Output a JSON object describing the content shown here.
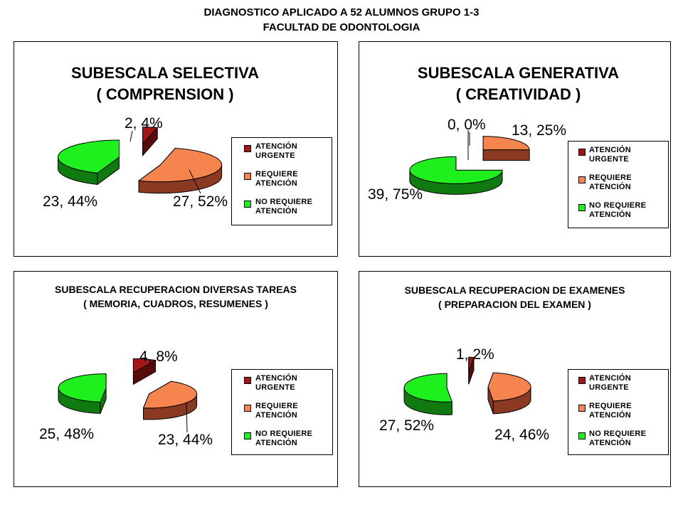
{
  "page": {
    "title_line1": "DIAGNOSTICO APLICADO A 52 ALUMNOS GRUPO 1-3",
    "title_line2": "FACULTAD DE ODONTOLOGIA"
  },
  "legend_items": [
    {
      "label": "ATENCIÓN\nURGENTE",
      "color": "#a31616"
    },
    {
      "label": "REQUIERE\nATENCIÓN",
      "color": "#f6844f"
    },
    {
      "label": "NO REQUIERE\nATENCIÓN",
      "color": "#1ef01e"
    }
  ],
  "chart_data": [
    {
      "type": "pie",
      "title_line1": "SUBESCALA SELECTIVA",
      "title_line2": "( COMPRENSION )",
      "categories": [
        "ATENCIÓN URGENTE",
        "REQUIERE ATENCIÓN",
        "NO REQUIERE ATENCIÓN"
      ],
      "values": [
        2,
        27,
        23
      ],
      "data_labels": [
        "2, 4%",
        "27, 52%",
        "23, 44%"
      ],
      "exploded": true,
      "legend_position": "right"
    },
    {
      "type": "pie",
      "title_line1": "SUBESCALA GENERATIVA",
      "title_line2": "( CREATIVIDAD )",
      "categories": [
        "ATENCIÓN URGENTE",
        "REQUIERE ATENCIÓN",
        "NO REQUIERE ATENCIÓN"
      ],
      "values": [
        0,
        13,
        39
      ],
      "data_labels": [
        "0, 0%",
        "13, 25%",
        "39, 75%"
      ],
      "exploded": true,
      "legend_position": "right"
    },
    {
      "type": "pie",
      "title_line1": "SUBESCALA  RECUPERACION  DIVERSAS  TAREAS",
      "title_line2": "( MEMORIA,  CUADROS,  RESUMENES  )",
      "categories": [
        "ATENCIÓN URGENTE",
        "REQUIERE ATENCIÓN",
        "NO REQUIERE ATENCIÓN"
      ],
      "values": [
        4,
        23,
        25
      ],
      "data_labels": [
        "4, 8%",
        "23, 44%",
        "25, 48%"
      ],
      "exploded": true,
      "legend_position": "right"
    },
    {
      "type": "pie",
      "title_line1": "SUBESCALA RECUPERACION DE EXAMENES",
      "title_line2": "( PREPARACION DEL EXAMEN )",
      "categories": [
        "ATENCIÓN URGENTE",
        "REQUIERE ATENCIÓN",
        "NO REQUIERE ATENCIÓN"
      ],
      "values": [
        1,
        24,
        27
      ],
      "data_labels": [
        "1, 2%",
        "24, 46%",
        "27, 52%"
      ],
      "exploded": true,
      "legend_position": "right"
    }
  ]
}
